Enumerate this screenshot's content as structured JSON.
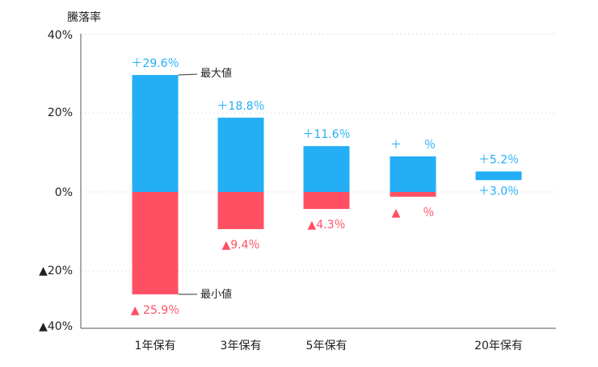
{
  "chart_data": {
    "type": "bar",
    "title": "",
    "ylabel": "騰落率",
    "xlabel": "",
    "ylim": [
      -40,
      40
    ],
    "yticks": [
      {
        "value": 40,
        "label": "40%"
      },
      {
        "value": 20,
        "label": "20%"
      },
      {
        "value": 0,
        "label": "0%"
      },
      {
        "value": -20,
        "label": "▲20%"
      },
      {
        "value": -40,
        "label": "▲40%"
      }
    ],
    "grid": true,
    "categories": [
      "1年保有",
      "3年保有",
      "5年保有",
      "",
      "20年保有"
    ],
    "max_values": [
      29.6,
      18.8,
      11.6,
      9.0,
      5.2
    ],
    "min_values": [
      -25.9,
      -9.4,
      -4.3,
      -1.2,
      3.0
    ],
    "max_labels": [
      "＋29.6％",
      "＋18.8％",
      "＋11.6％",
      "＋　　％",
      "＋5.2％"
    ],
    "min_labels": [
      "▲ 25.9％",
      "▲9.4％",
      "▲4.3％",
      "▲　　％",
      "＋3.0％"
    ],
    "annotations": {
      "max": "最大値",
      "min": "最小値"
    },
    "colors": {
      "positive": "#23AEF6",
      "negative": "#FF5063",
      "axis": "#555555",
      "grid": "#c8c8c8",
      "text": "#222222"
    }
  }
}
